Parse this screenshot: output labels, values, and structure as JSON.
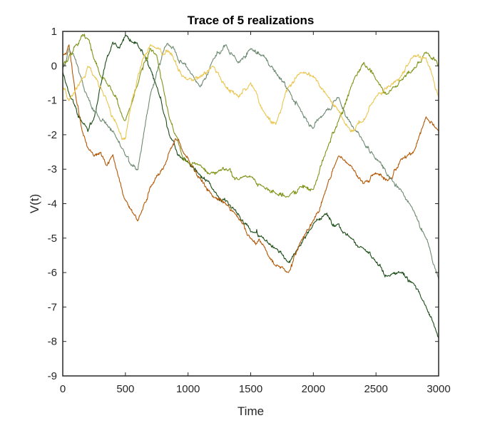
{
  "chart_data": {
    "type": "line",
    "title": "Trace of 5 realizations",
    "xlabel": "Time",
    "ylabel": "V(t)",
    "xlim": [
      0,
      3000
    ],
    "ylim": [
      -9,
      1
    ],
    "xticks": [
      0,
      500,
      1000,
      1500,
      2000,
      2500,
      3000
    ],
    "xtick_labels": [
      "0",
      "500",
      "1000",
      "1500",
      "2000",
      "2500",
      "3000"
    ],
    "yticks": [
      1,
      0,
      -1,
      -2,
      -3,
      -4,
      -5,
      -6,
      -7,
      -8,
      -9
    ],
    "ytick_labels": [
      "1",
      "0",
      "-1",
      "-2",
      "-3",
      "-4",
      "-5",
      "-6",
      "-7",
      "-8",
      "-9"
    ],
    "grid": false,
    "legend": "none",
    "series": [
      {
        "color": "#1b4d17",
        "x": [
          0,
          50,
          100,
          150,
          200,
          250,
          300,
          350,
          400,
          450,
          500,
          550,
          600,
          650,
          700,
          750,
          800,
          850,
          900,
          950,
          1000,
          1100,
          1200,
          1300,
          1400,
          1500,
          1600,
          1700,
          1800,
          1900,
          2000,
          2100,
          2200,
          2300,
          2400,
          2500,
          2600,
          2700,
          2800,
          2900,
          3000
        ],
        "y": [
          -0.2,
          -0.8,
          -1.2,
          -1.6,
          -1.9,
          -1.5,
          -0.6,
          0.2,
          0.7,
          0.5,
          0.9,
          0.7,
          0.6,
          0.3,
          -0.1,
          -0.6,
          -1.3,
          -2.0,
          -2.4,
          -2.7,
          -2.8,
          -3.2,
          -3.6,
          -3.9,
          -4.3,
          -4.8,
          -5.0,
          -5.3,
          -5.7,
          -5.2,
          -4.6,
          -4.3,
          -4.6,
          -5.0,
          -5.3,
          -5.7,
          -6.1,
          -6.0,
          -6.3,
          -7.0,
          -7.9
        ]
      },
      {
        "color": "#b35806",
        "x": [
          0,
          50,
          100,
          150,
          200,
          250,
          300,
          350,
          400,
          450,
          500,
          550,
          600,
          650,
          700,
          750,
          800,
          850,
          900,
          950,
          1000,
          1100,
          1200,
          1300,
          1400,
          1500,
          1600,
          1700,
          1800,
          1900,
          2000,
          2100,
          2200,
          2300,
          2400,
          2500,
          2600,
          2700,
          2800,
          2900,
          3000
        ],
        "y": [
          0.3,
          0.6,
          -0.8,
          -1.8,
          -2.4,
          -2.6,
          -2.5,
          -2.9,
          -2.6,
          -3.3,
          -3.9,
          -4.2,
          -4.5,
          -4.0,
          -3.5,
          -3.2,
          -3.0,
          -2.5,
          -2.1,
          -2.4,
          -2.7,
          -3.3,
          -3.8,
          -4.0,
          -4.4,
          -5.0,
          -5.2,
          -5.8,
          -6.0,
          -5.1,
          -4.5,
          -3.6,
          -2.6,
          -2.9,
          -3.4,
          -3.1,
          -3.3,
          -2.7,
          -2.5,
          -1.5,
          -1.9
        ]
      },
      {
        "color": "#6e8a72",
        "x": [
          0,
          50,
          100,
          150,
          200,
          250,
          300,
          350,
          400,
          450,
          500,
          550,
          600,
          650,
          700,
          750,
          800,
          850,
          900,
          950,
          1000,
          1100,
          1200,
          1300,
          1400,
          1500,
          1600,
          1700,
          1800,
          1900,
          2000,
          2100,
          2200,
          2300,
          2400,
          2500,
          2600,
          2700,
          2800,
          2900,
          3000
        ],
        "y": [
          -0.1,
          0.5,
          0.2,
          -0.4,
          -0.9,
          -1.3,
          -1.6,
          -1.7,
          -1.9,
          -2.2,
          -2.6,
          -2.9,
          -3.0,
          -1.9,
          -0.8,
          -0.2,
          0.4,
          0.6,
          0.4,
          0.1,
          -0.1,
          -0.6,
          0.2,
          0.6,
          0.1,
          0.5,
          0.3,
          -0.2,
          -0.7,
          -1.3,
          -1.8,
          -1.3,
          -0.9,
          -1.7,
          -2.2,
          -2.7,
          -3.2,
          -3.6,
          -4.2,
          -5.0,
          -6.2
        ]
      },
      {
        "color": "#7e9418",
        "x": [
          0,
          50,
          100,
          150,
          200,
          250,
          300,
          350,
          400,
          450,
          500,
          550,
          600,
          650,
          700,
          750,
          800,
          850,
          900,
          950,
          1000,
          1100,
          1200,
          1300,
          1400,
          1500,
          1600,
          1700,
          1800,
          1900,
          2000,
          2100,
          2200,
          2300,
          2400,
          2500,
          2600,
          2700,
          2800,
          2900,
          3000
        ],
        "y": [
          0.0,
          0.3,
          0.6,
          0.9,
          0.8,
          0.2,
          -0.3,
          -0.5,
          -0.8,
          -1.2,
          -1.6,
          -1.1,
          -0.5,
          0.1,
          0.5,
          0.3,
          -0.6,
          -1.5,
          -2.0,
          -2.6,
          -2.8,
          -2.9,
          -3.1,
          -3.0,
          -3.3,
          -3.2,
          -3.5,
          -3.7,
          -3.8,
          -3.5,
          -3.6,
          -2.5,
          -1.6,
          -0.6,
          0.1,
          -0.4,
          -0.8,
          -0.4,
          -0.1,
          0.4,
          0.0
        ]
      },
      {
        "color": "#eac54f",
        "x": [
          0,
          50,
          100,
          150,
          200,
          250,
          300,
          350,
          400,
          450,
          500,
          550,
          600,
          650,
          700,
          750,
          800,
          850,
          900,
          950,
          1000,
          1100,
          1200,
          1300,
          1400,
          1500,
          1600,
          1700,
          1800,
          1900,
          2000,
          2100,
          2200,
          2300,
          2400,
          2500,
          2600,
          2700,
          2800,
          2900,
          3000
        ],
        "y": [
          -0.6,
          -1.0,
          -0.7,
          -0.4,
          0.0,
          -0.3,
          -0.6,
          -1.0,
          -1.5,
          -1.9,
          -2.1,
          -1.0,
          -0.3,
          0.3,
          0.6,
          0.5,
          0.3,
          0.4,
          0.1,
          -0.3,
          -0.4,
          -0.3,
          0.0,
          -0.6,
          -0.9,
          -0.5,
          -1.3,
          -1.7,
          -0.6,
          -0.2,
          -0.3,
          -0.8,
          -1.3,
          -1.9,
          -1.6,
          -0.9,
          -0.6,
          -0.3,
          0.3,
          0.2,
          -0.9
        ]
      }
    ]
  }
}
